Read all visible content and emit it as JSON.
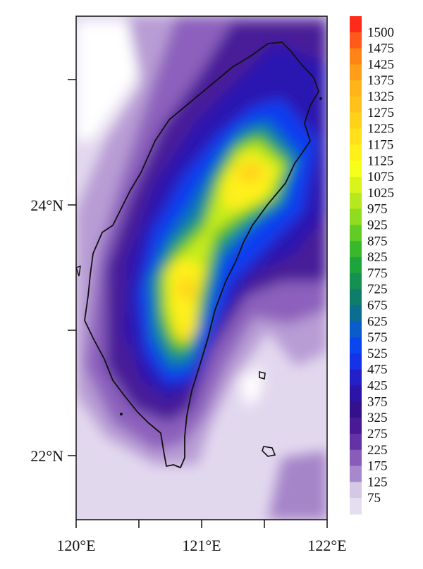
{
  "map": {
    "lat_ticks": [
      "24°N",
      "22°N"
    ],
    "lon_ticks": [
      "120°E",
      "121°E",
      "122°E"
    ]
  },
  "colorbar": {
    "labels": [
      "1500",
      "1475",
      "1425",
      "1375",
      "1325",
      "1275",
      "1225",
      "1175",
      "1125",
      "1075",
      "1025",
      "975",
      "925",
      "875",
      "825",
      "775",
      "725",
      "675",
      "625",
      "575",
      "525",
      "475",
      "425",
      "375",
      "325",
      "275",
      "225",
      "175",
      "125",
      "75"
    ],
    "colors": [
      "#ff2a1a",
      "#ff5a1a",
      "#ff8418",
      "#ff9e18",
      "#ffb41a",
      "#ffc21a",
      "#ffd21a",
      "#ffe01a",
      "#fff01a",
      "#f6ff1a",
      "#d8f41a",
      "#b6e81e",
      "#8fdc20",
      "#62cc24",
      "#39b82c",
      "#1ea43c",
      "#149050",
      "#107c6a",
      "#0a6e90",
      "#0a5cc8",
      "#0a46f0",
      "#1432e8",
      "#2420c8",
      "#2c14a8",
      "#34108c",
      "#4a1a96",
      "#6432a6",
      "#8a5cba",
      "#a888cc",
      "#d4c8e4",
      "#e6def0"
    ]
  }
}
